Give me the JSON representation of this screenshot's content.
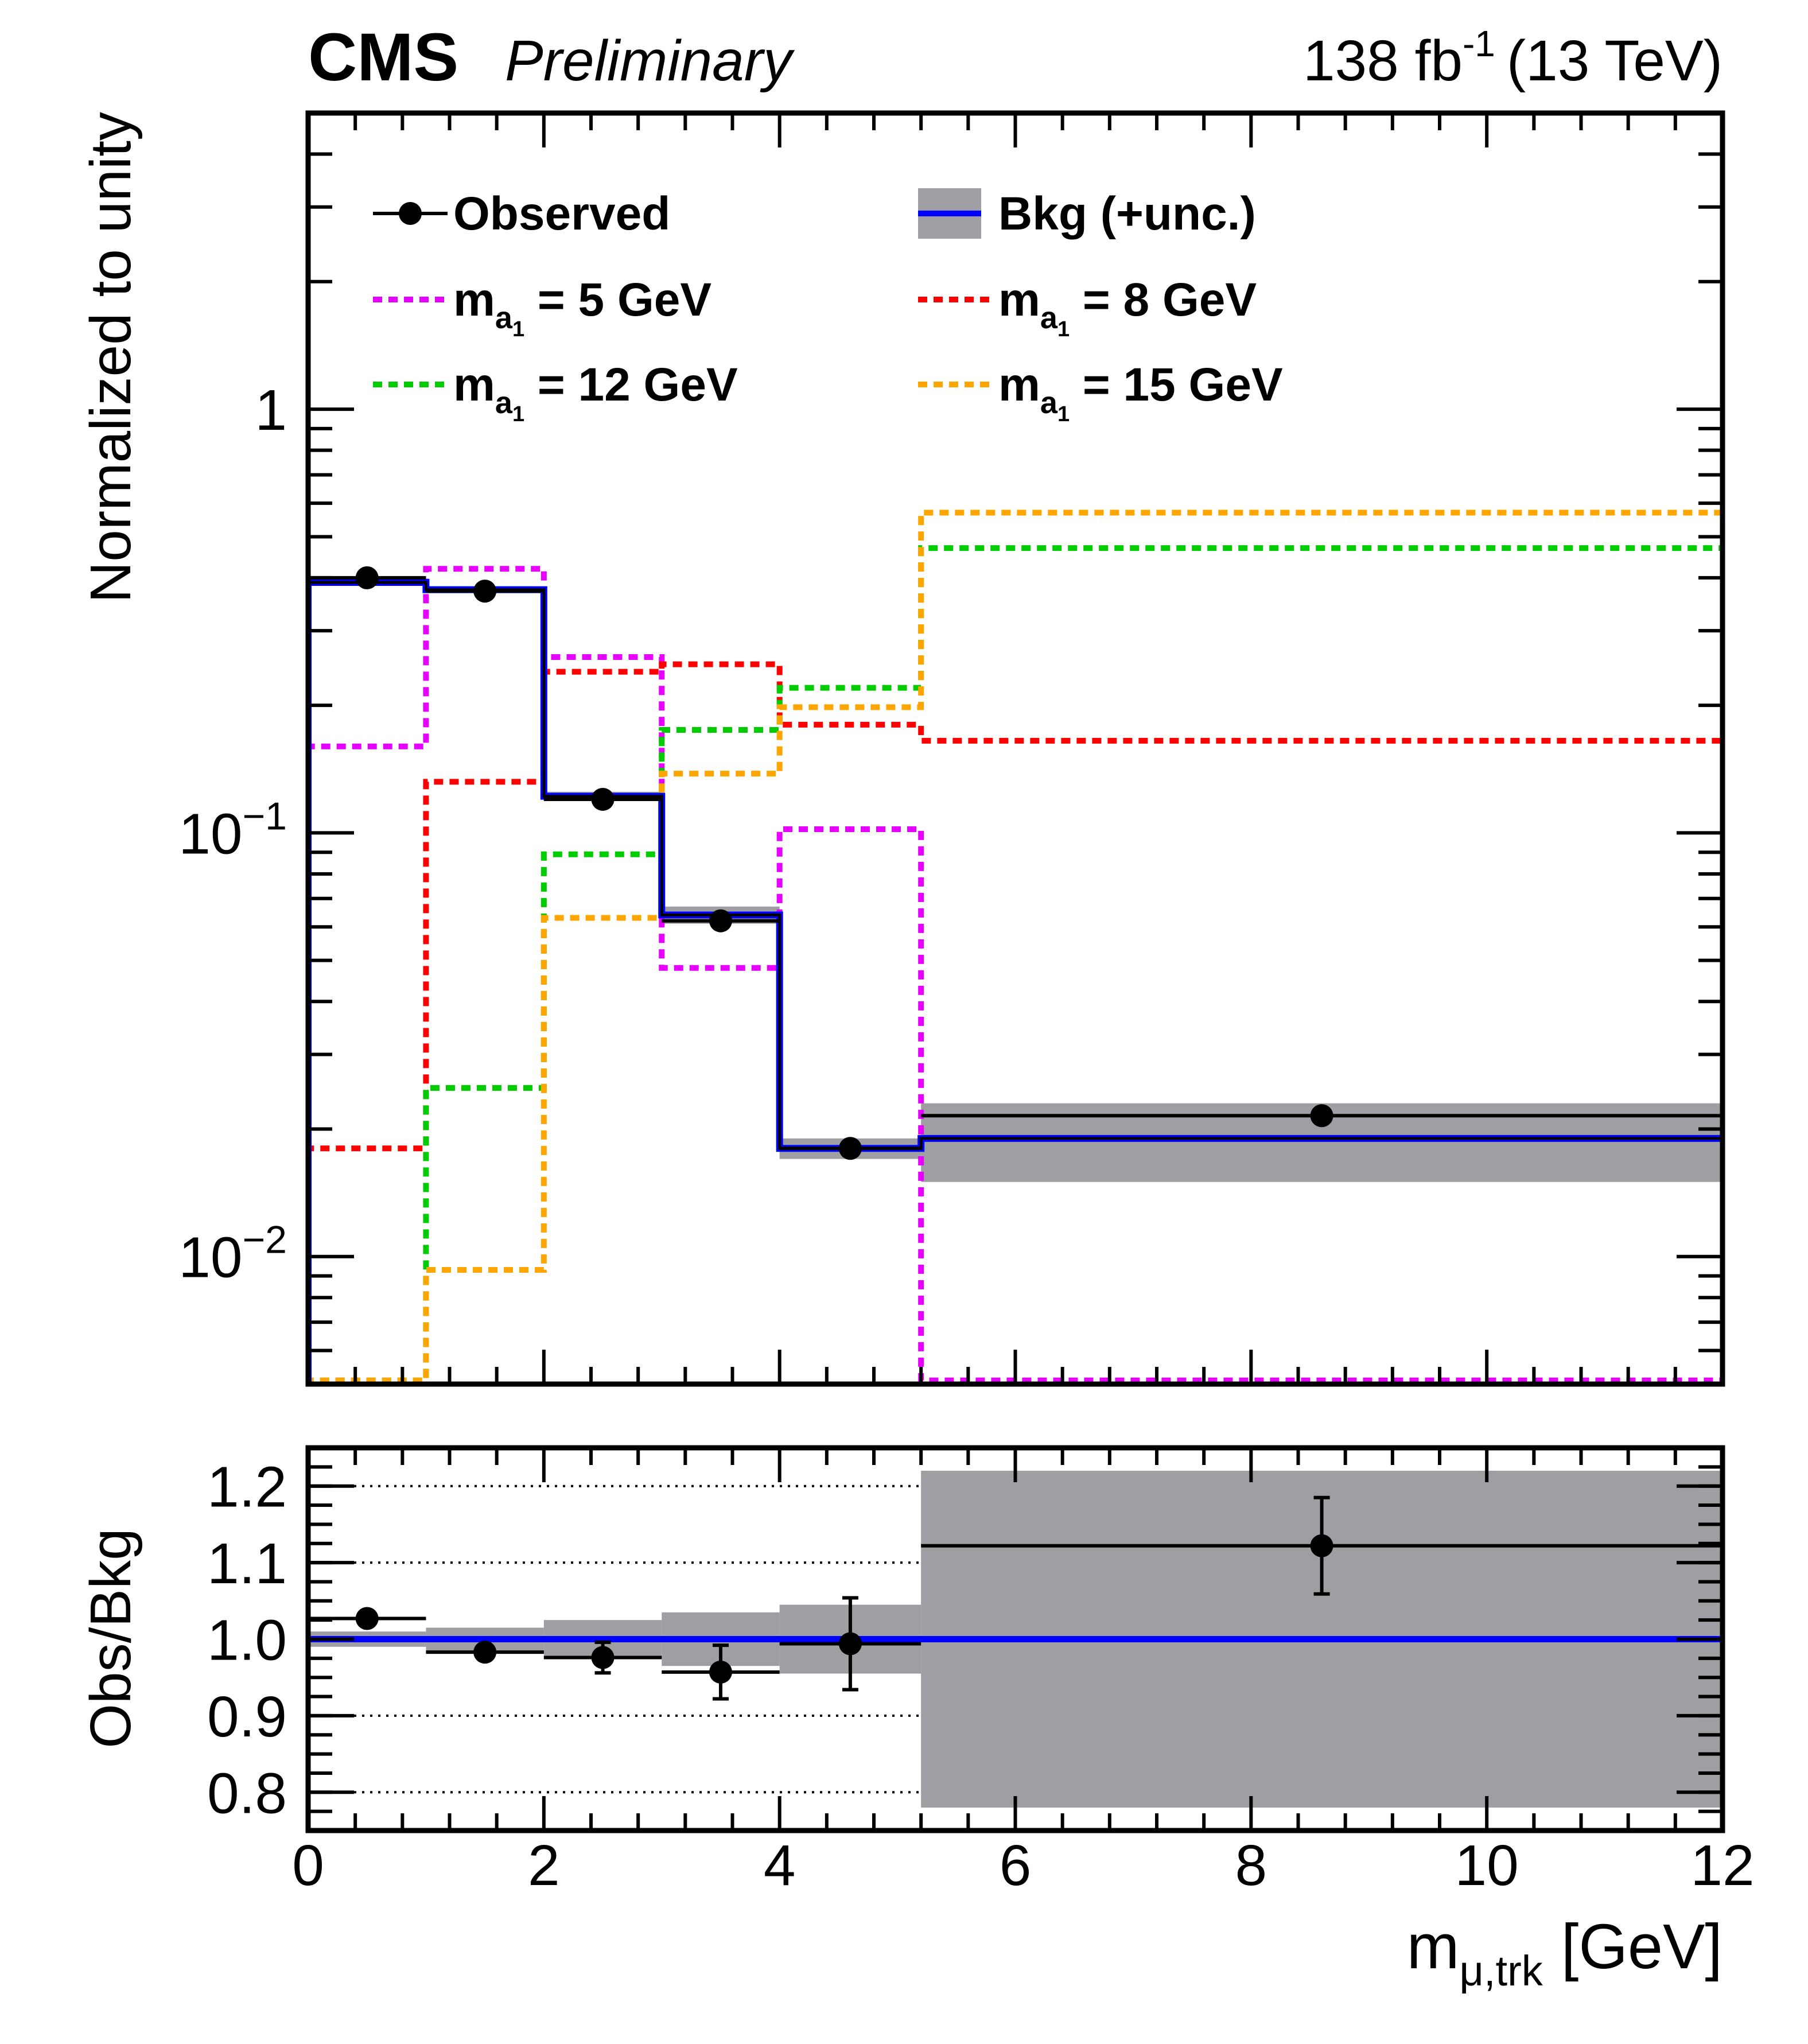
{
  "header": {
    "experiment": "CMS",
    "status": "Preliminary",
    "lumi_value": "138 fb",
    "lumi_exp": "-1",
    "energy": "(13 TeV)"
  },
  "colors": {
    "observed": "#000000",
    "bkg": "#0000ff",
    "band": "#9e9ea3",
    "ma5": "#e600ff",
    "ma8": "#ff0000",
    "ma12": "#00cc00",
    "ma15": "#ffa500"
  },
  "chart_data": {
    "type": "histogram",
    "xlabel": "m_{μ,trk} [GeV]",
    "xlabel_parts": {
      "base": "m",
      "sub": "μ,trk",
      "unit": "[GeV]"
    },
    "xlim": [
      0,
      12
    ],
    "xticks": [
      "0",
      "2",
      "4",
      "6",
      "8",
      "10",
      "12"
    ],
    "bin_edges": [
      0,
      1,
      2,
      3,
      4,
      5.2,
      12
    ],
    "main": {
      "ylabel": "Normalized to unity",
      "yscale": "log",
      "ylim": [
        0.005,
        5
      ],
      "yticks": [
        {
          "value": 1,
          "base": "1",
          "exp": ""
        },
        {
          "value": 0.1,
          "base": "10",
          "exp": "−1"
        },
        {
          "value": 0.01,
          "base": "10",
          "exp": "−2"
        }
      ],
      "series": [
        {
          "name": "Observed",
          "kind": "points",
          "x": [
            0.5,
            1.5,
            2.5,
            3.5,
            4.6,
            8.6
          ],
          "values": [
            0.4,
            0.372,
            0.12,
            0.062,
            0.018,
            0.0215
          ]
        },
        {
          "name": "Bkg (+unc.)",
          "kind": "step",
          "values": [
            0.39,
            0.375,
            0.122,
            0.064,
            0.018,
            0.019
          ],
          "band_low": [
            0.386,
            0.371,
            0.119,
            0.061,
            0.017,
            0.015
          ],
          "band_high": [
            0.394,
            0.379,
            0.125,
            0.067,
            0.019,
            0.023
          ]
        },
        {
          "name": "m_{a1} = 5 GeV",
          "kind": "dashed-step",
          "values": [
            0.16,
            0.42,
            0.26,
            0.048,
            0.102,
            0.0051
          ]
        },
        {
          "name": "m_{a1} = 8 GeV",
          "kind": "dashed-step",
          "values": [
            0.018,
            0.132,
            0.24,
            0.25,
            0.18,
            0.165
          ]
        },
        {
          "name": "m_{a1} = 12 GeV",
          "kind": "dashed-step",
          "values": [
            0.0051,
            0.025,
            0.089,
            0.175,
            0.22,
            0.47
          ]
        },
        {
          "name": "m_{a1} = 15 GeV",
          "kind": "dashed-step",
          "values": [
            0.0051,
            0.0093,
            0.063,
            0.138,
            0.198,
            0.57
          ]
        }
      ]
    },
    "ratio": {
      "ylabel": "Obs/Bkg",
      "ylim": [
        0.75,
        1.25
      ],
      "yticks": [
        "0.8",
        "0.9",
        "1.0",
        "1.1",
        "1.2"
      ],
      "values": [
        1.027,
        0.983,
        0.976,
        0.957,
        0.994,
        1.122
      ],
      "errors": [
        0,
        0,
        0.02,
        0.035,
        0.06,
        0.063
      ],
      "x": [
        0.5,
        1.5,
        2.5,
        3.5,
        4.6,
        8.6
      ],
      "band_low": [
        0.99,
        0.985,
        0.975,
        0.965,
        0.955,
        0.78
      ],
      "band_high": [
        1.01,
        1.015,
        1.025,
        1.035,
        1.045,
        1.22
      ]
    }
  },
  "legend": [
    {
      "label": "Observed",
      "key": "observed",
      "style": "point"
    },
    {
      "label": "Bkg (+unc.)",
      "key": "bkg",
      "style": "band"
    },
    {
      "label_base": "m",
      "label_sub": "a",
      "label_subsub": "1",
      "label_rest": " = 5 GeV",
      "key": "ma5",
      "style": "dashed"
    },
    {
      "label_base": "m",
      "label_sub": "a",
      "label_subsub": "1",
      "label_rest": " = 8 GeV",
      "key": "ma8",
      "style": "dashed"
    },
    {
      "label_base": "m",
      "label_sub": "a",
      "label_subsub": "1",
      "label_rest": " = 12 GeV",
      "key": "ma12",
      "style": "dashed"
    },
    {
      "label_base": "m",
      "label_sub": "a",
      "label_subsub": "1",
      "label_rest": " = 15 GeV",
      "key": "ma15",
      "style": "dashed"
    }
  ]
}
